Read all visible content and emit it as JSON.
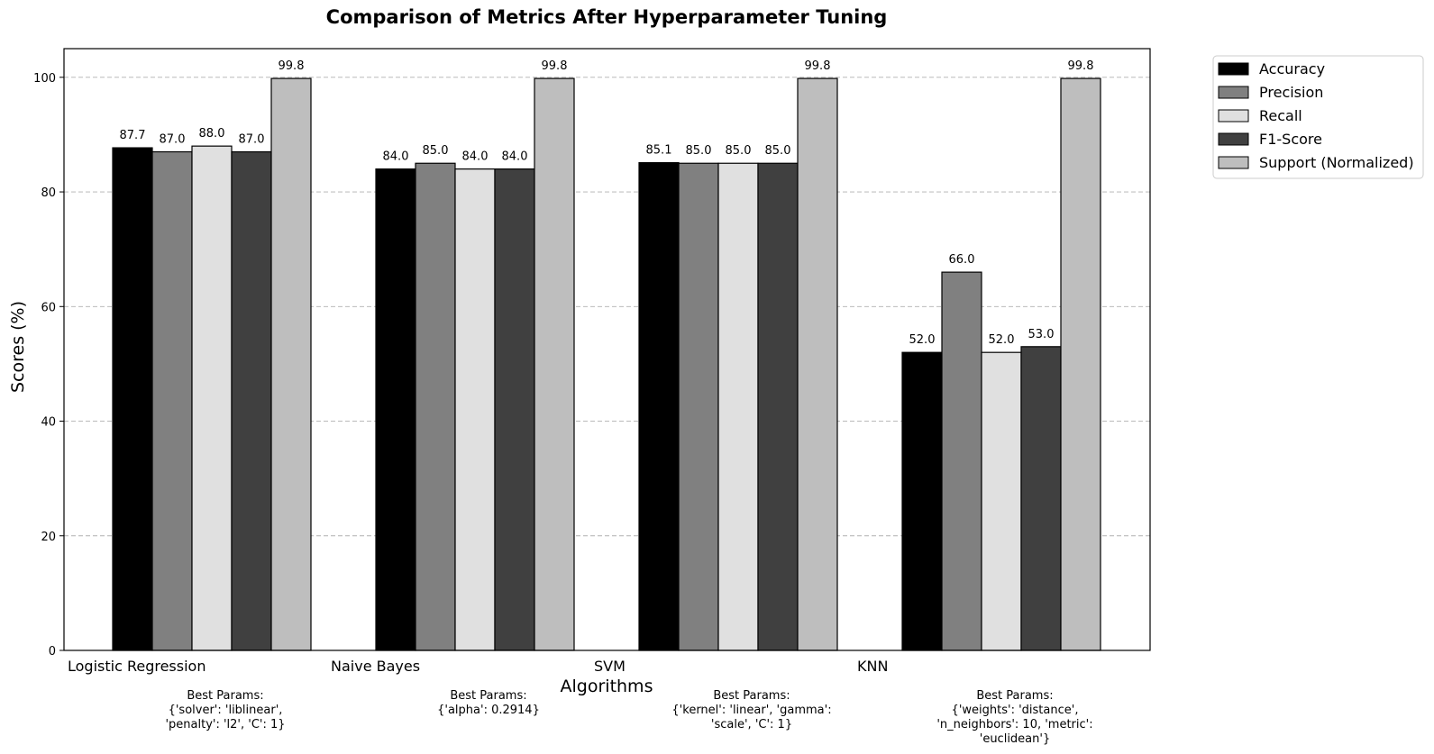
{
  "chart_data": {
    "type": "bar",
    "title": "Comparison of Metrics After Hyperparameter Tuning",
    "xlabel": "Algorithms",
    "ylabel": "Scores (%)",
    "ylim": [
      0,
      105
    ],
    "yticks": [
      0,
      20,
      40,
      60,
      80,
      100
    ],
    "grid": "y-dashed",
    "legend_position": "outside-top-right",
    "categories": [
      "Logistic Regression",
      "Naive Bayes",
      "SVM",
      "KNN"
    ],
    "series": [
      {
        "name": "Accuracy",
        "color": "#000000",
        "values": [
          87.7,
          84.0,
          85.1,
          52.0
        ],
        "labels": [
          "87.7",
          "84.0",
          "85.1",
          "52.0"
        ]
      },
      {
        "name": "Precision",
        "color": "#808080",
        "values": [
          87.0,
          85.0,
          85.0,
          66.0
        ],
        "labels": [
          "87.0",
          "85.0",
          "85.0",
          "66.0"
        ]
      },
      {
        "name": "Recall",
        "color": "#e0e0e0",
        "values": [
          88.0,
          84.0,
          85.0,
          52.0
        ],
        "labels": [
          "88.0",
          "84.0",
          "85.0",
          "52.0"
        ]
      },
      {
        "name": "F1-Score",
        "color": "#404040",
        "values": [
          87.0,
          84.0,
          85.0,
          53.0
        ],
        "labels": [
          "87.0",
          "84.0",
          "85.0",
          "53.0"
        ]
      },
      {
        "name": "Support (Normalized)",
        "color": "#bebebe",
        "values": [
          99.8,
          99.8,
          99.8,
          99.8
        ],
        "labels": [
          "99.8",
          "99.8",
          "99.8",
          "99.8"
        ]
      }
    ],
    "annotations": [
      [
        "Best Params:",
        "{'solver': 'liblinear',",
        "'penalty': 'l2', 'C': 1}"
      ],
      [
        "Best Params:",
        "{'alpha': 0.2914}"
      ],
      [
        "Best Params:",
        "{'kernel': 'linear', 'gamma':",
        "'scale', 'C': 1}"
      ],
      [
        "Best Params:",
        "{'weights': 'distance',",
        "'n_neighbors': 10, 'metric':",
        "'euclidean'}"
      ]
    ]
  }
}
